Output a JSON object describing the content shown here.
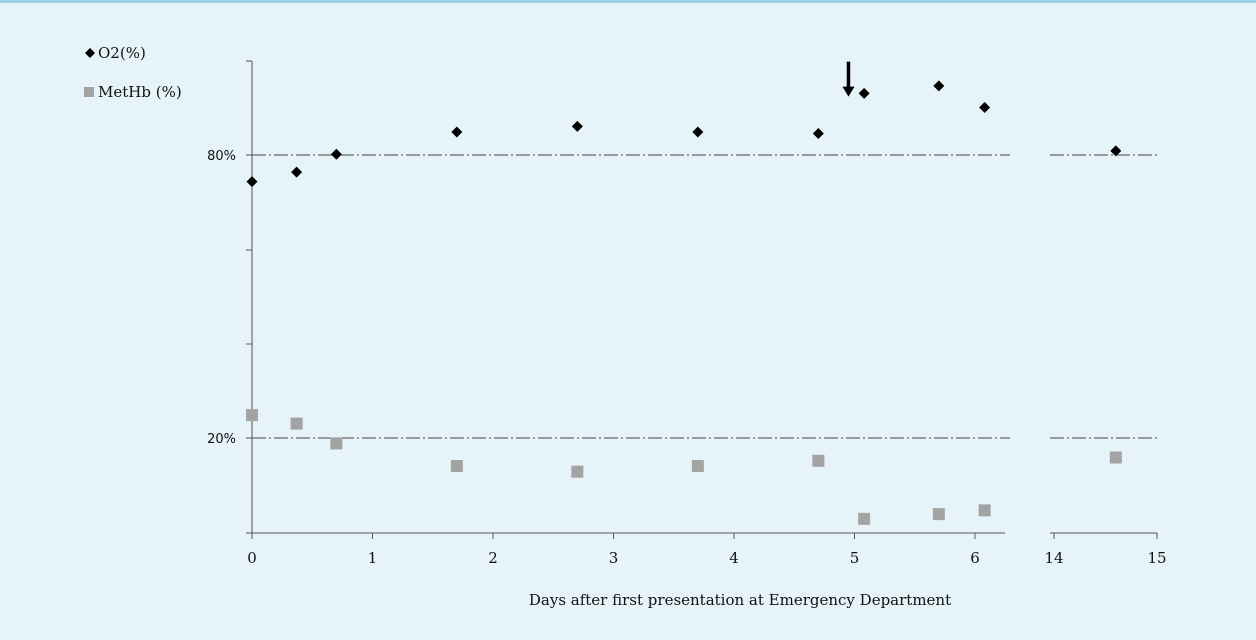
{
  "chart_data": {
    "type": "scatter",
    "xlabel": "Days after first presentation at Emergency Department",
    "ylabel": "",
    "x_ticks_left": [
      0,
      1,
      2,
      3,
      4,
      5,
      6
    ],
    "x_ticks_right": [
      14,
      15
    ],
    "y_ticks": [
      {
        "value": 80,
        "label": "80%"
      },
      {
        "value": 20,
        "label": "20%"
      }
    ],
    "grid": "dash-dot reference lines at 80% and 20%",
    "axis_break": "between 6 and 14 days",
    "legend_position": "top-left",
    "annotation": {
      "type": "arrow",
      "x": 4.95,
      "y": 92.5
    },
    "series": [
      {
        "name": "O2(%)",
        "marker": "diamond",
        "color": "#000000",
        "points": [
          {
            "x": 0,
            "y": 74.5
          },
          {
            "x": 0.37,
            "y": 76.5
          },
          {
            "x": 0.7,
            "y": 80.3
          },
          {
            "x": 1.7,
            "y": 85
          },
          {
            "x": 2.7,
            "y": 86.2
          },
          {
            "x": 3.7,
            "y": 85
          },
          {
            "x": 4.7,
            "y": 84.7
          },
          {
            "x": 5.08,
            "y": 93.2
          },
          {
            "x": 5.7,
            "y": 94.8
          },
          {
            "x": 6.08,
            "y": 90.2
          },
          {
            "x": 14.6,
            "y": 81
          }
        ]
      },
      {
        "name": "MetHb (%)",
        "marker": "square",
        "color": "#a3a3a3",
        "points": [
          {
            "x": 0,
            "y": 25
          },
          {
            "x": 0.37,
            "y": 23.2
          },
          {
            "x": 0.7,
            "y": 19
          },
          {
            "x": 1.7,
            "y": 14.2
          },
          {
            "x": 2.7,
            "y": 13
          },
          {
            "x": 3.7,
            "y": 14.2
          },
          {
            "x": 4.7,
            "y": 15.3
          },
          {
            "x": 5.08,
            "y": 3
          },
          {
            "x": 5.7,
            "y": 4
          },
          {
            "x": 6.08,
            "y": 4.8
          },
          {
            "x": 14.6,
            "y": 16
          }
        ]
      }
    ]
  }
}
